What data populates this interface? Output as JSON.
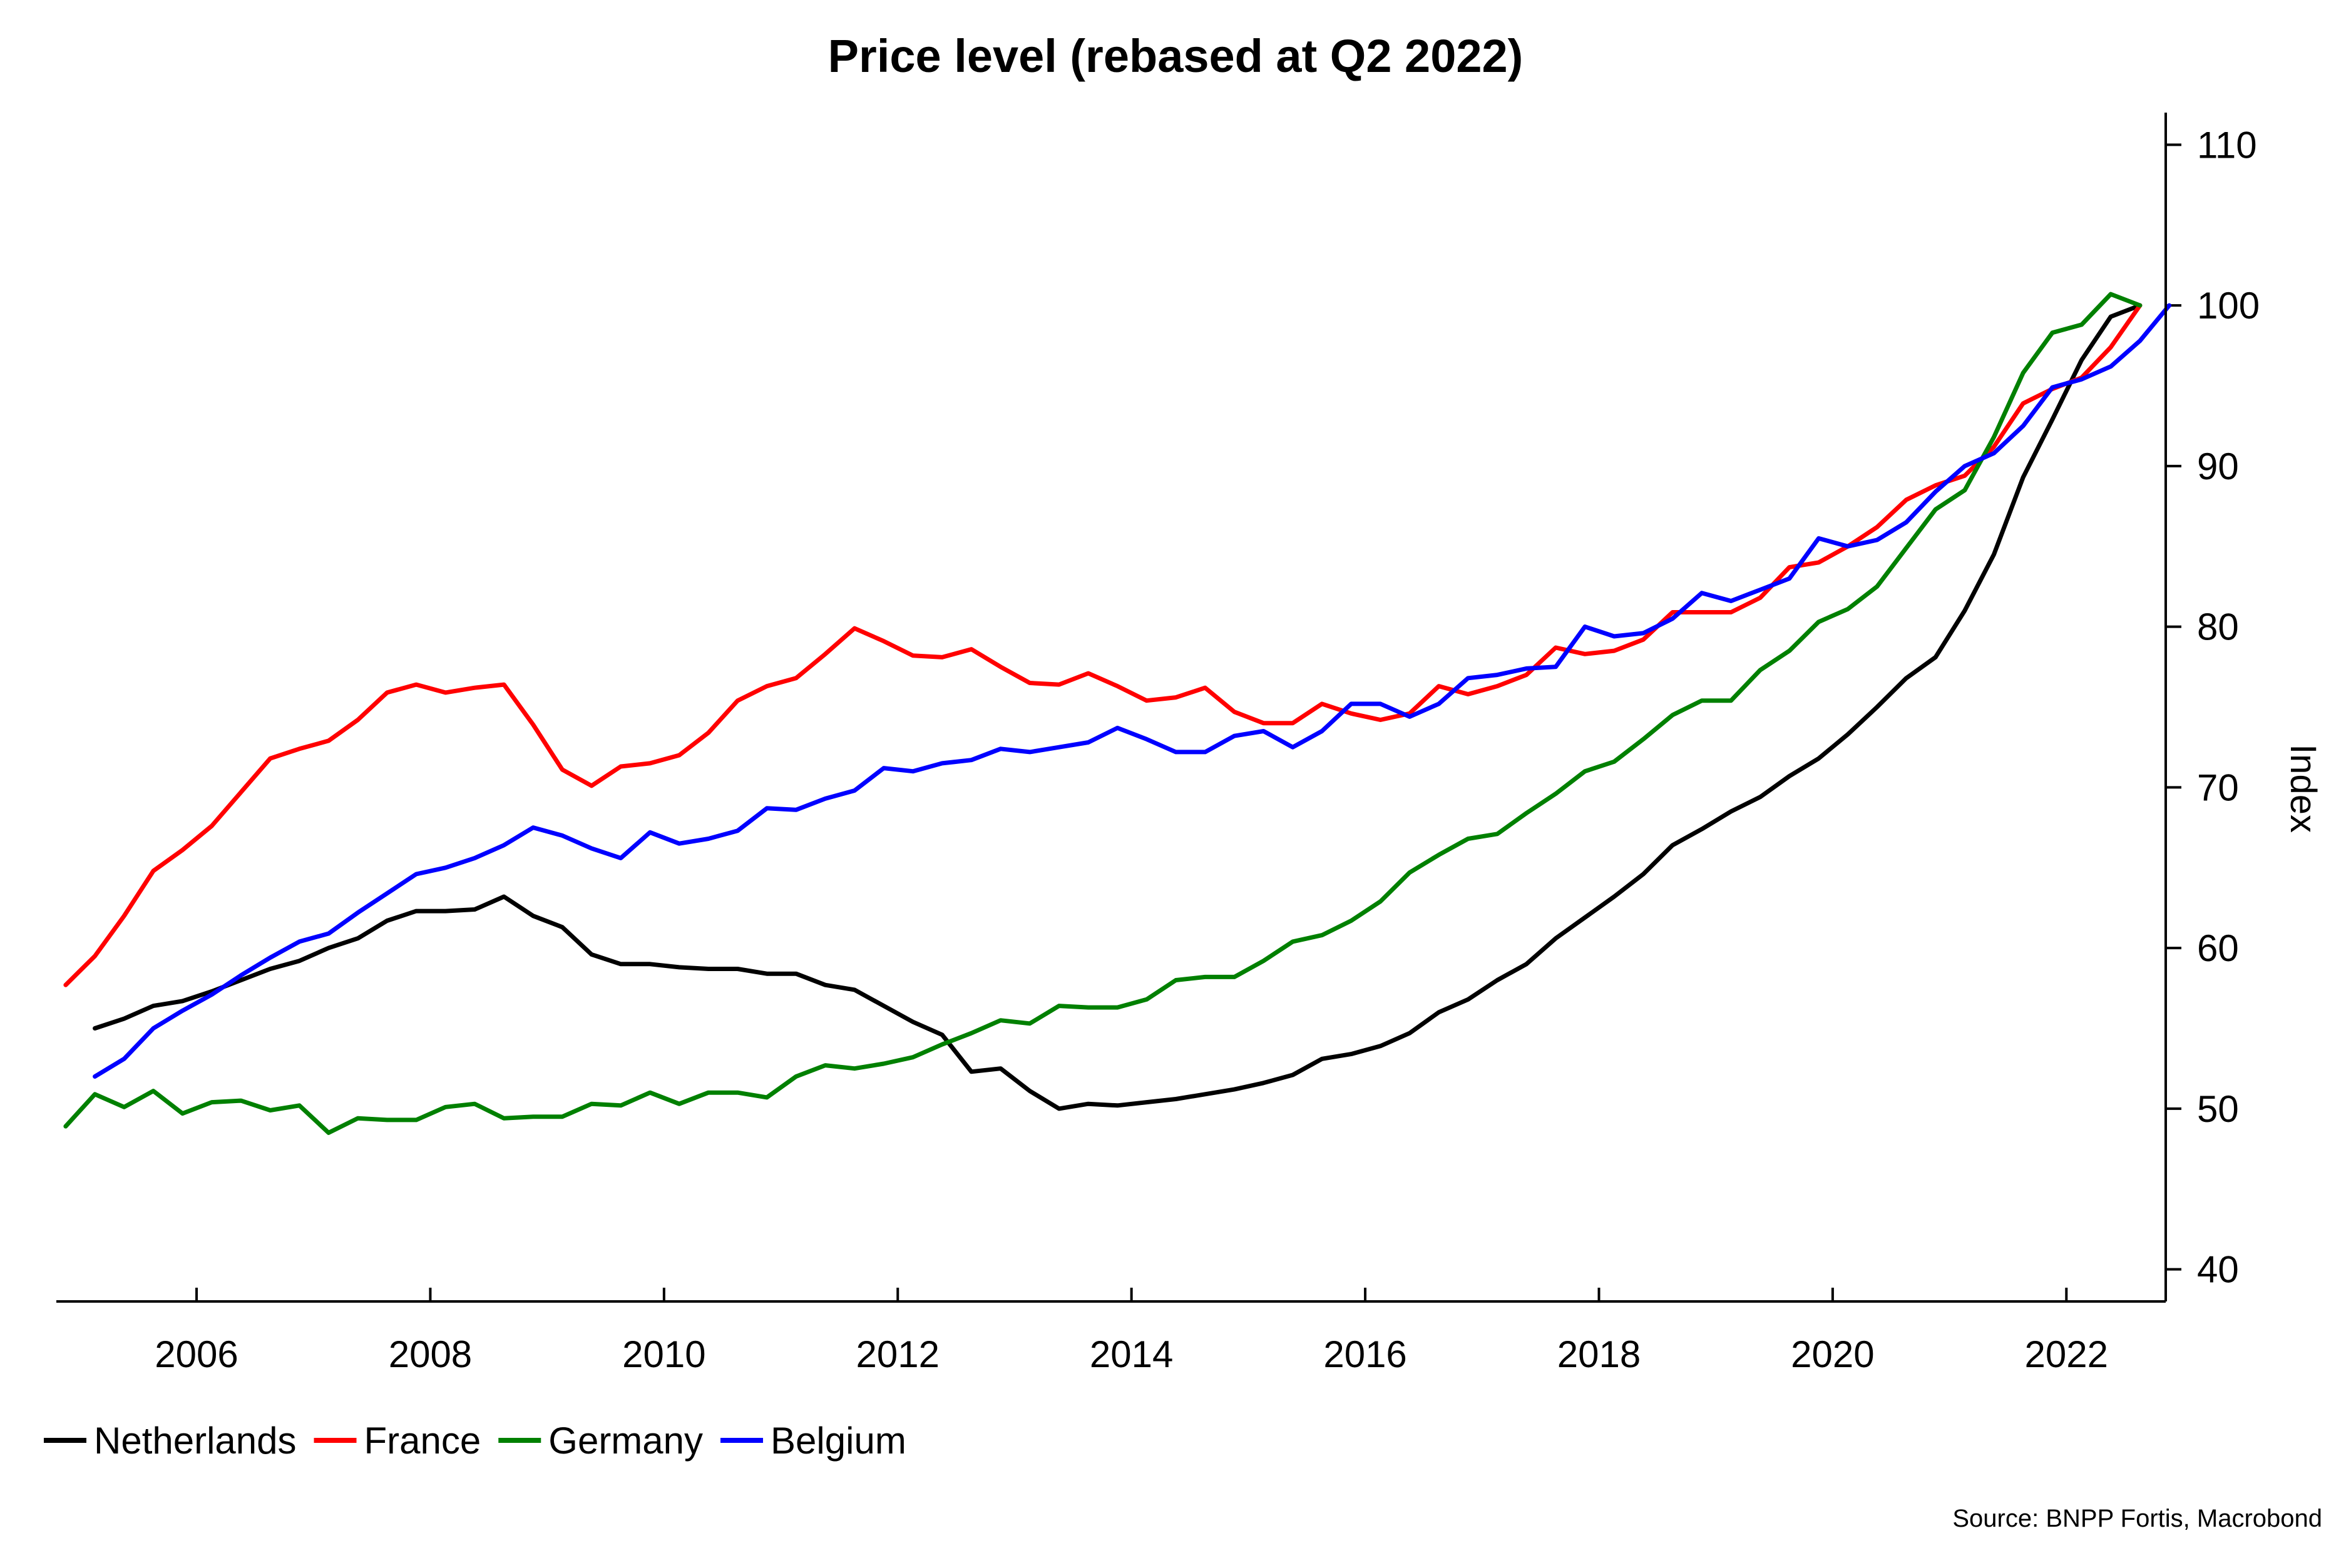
{
  "chart_data": {
    "type": "line",
    "title": "Price level (rebased at Q2 2022)",
    "xlabel": "",
    "ylabel": "Index",
    "source": "Source: BNPP Fortis, Macrobond",
    "ylim": [
      38,
      112
    ],
    "xlim": [
      2004.8,
      2022.85
    ],
    "yticks": [
      40,
      50,
      60,
      70,
      80,
      90,
      100,
      110
    ],
    "ytick_labels": [
      "40",
      "50",
      "60",
      "70",
      "80",
      "90",
      "100",
      "110"
    ],
    "xticks": [
      2006,
      2008,
      2010,
      2012,
      2014,
      2016,
      2018,
      2020,
      2022
    ],
    "xtick_labels": [
      "2006",
      "2008",
      "2010",
      "2012",
      "2014",
      "2016",
      "2018",
      "2020",
      "2022"
    ],
    "legend_position": "bottom-left",
    "series": [
      {
        "name": "Netherlands",
        "color": "#000000",
        "start": 2005.13,
        "step": 0.25,
        "values": [
          55.0,
          55.6,
          56.4,
          56.7,
          57.3,
          58.0,
          58.7,
          59.2,
          60.0,
          60.6,
          61.7,
          62.3,
          62.3,
          62.4,
          63.2,
          62.0,
          61.3,
          59.6,
          59.0,
          59.0,
          58.8,
          58.7,
          58.7,
          58.4,
          58.4,
          57.7,
          57.4,
          56.4,
          55.4,
          54.6,
          52.3,
          52.5,
          51.1,
          50.0,
          50.3,
          50.2,
          50.4,
          50.6,
          50.9,
          51.2,
          51.6,
          52.1,
          53.1,
          53.4,
          53.9,
          54.7,
          56.0,
          56.8,
          58.0,
          59.0,
          60.6,
          61.9,
          63.2,
          64.6,
          66.4,
          67.4,
          68.5,
          69.4,
          70.7,
          71.8,
          73.3,
          75.0,
          76.8,
          78.1,
          81.0,
          84.5,
          89.3,
          92.9,
          96.6,
          99.3,
          100.0
        ]
      },
      {
        "name": "France",
        "color": "#ff0000",
        "start": 2004.88,
        "step": 0.25,
        "values": [
          57.7,
          59.5,
          62.0,
          64.8,
          66.1,
          67.6,
          69.7,
          71.8,
          72.4,
          72.9,
          74.2,
          75.9,
          76.4,
          75.9,
          76.2,
          76.4,
          73.9,
          71.1,
          70.1,
          71.3,
          71.5,
          72.0,
          73.4,
          75.4,
          76.3,
          76.8,
          78.3,
          79.9,
          79.1,
          78.2,
          78.1,
          78.6,
          77.5,
          76.5,
          76.4,
          77.1,
          76.3,
          75.4,
          75.6,
          76.2,
          74.7,
          74.0,
          74.0,
          75.2,
          74.6,
          74.2,
          74.6,
          76.3,
          75.8,
          76.3,
          77.0,
          78.7,
          78.3,
          78.5,
          79.2,
          80.9,
          80.9,
          80.9,
          81.8,
          83.7,
          84.0,
          85.0,
          86.2,
          87.9,
          88.8,
          89.4,
          91.2,
          93.9,
          94.8,
          95.5,
          97.4,
          100.0
        ]
      },
      {
        "name": "Germany",
        "color": "#008000",
        "start": 2004.88,
        "step": 0.25,
        "values": [
          48.9,
          50.9,
          50.1,
          51.1,
          49.7,
          50.4,
          50.5,
          49.9,
          50.2,
          48.5,
          49.4,
          49.3,
          49.3,
          50.1,
          50.3,
          49.4,
          49.5,
          49.5,
          50.3,
          50.2,
          51.0,
          50.3,
          51.0,
          51.0,
          50.7,
          52.0,
          52.7,
          52.5,
          52.8,
          53.2,
          54.0,
          54.7,
          55.5,
          55.3,
          56.4,
          56.3,
          56.3,
          56.8,
          58.0,
          58.2,
          58.2,
          59.2,
          60.4,
          60.8,
          61.7,
          62.9,
          64.7,
          65.8,
          66.8,
          67.1,
          68.4,
          69.6,
          71.0,
          71.6,
          73.0,
          74.5,
          75.4,
          75.4,
          77.3,
          78.5,
          80.3,
          81.1,
          82.5,
          84.9,
          87.3,
          88.5,
          91.8,
          95.8,
          98.3,
          98.8,
          100.7,
          100.0
        ]
      },
      {
        "name": "Belgium",
        "color": "#0000ff",
        "start": 2005.13,
        "step": 0.25,
        "values": [
          52.0,
          53.1,
          55.0,
          56.1,
          57.1,
          58.3,
          59.4,
          60.4,
          60.9,
          62.2,
          63.4,
          64.6,
          65.0,
          65.6,
          66.4,
          67.5,
          67.0,
          66.2,
          65.6,
          67.2,
          66.5,
          66.8,
          67.3,
          68.7,
          68.6,
          69.3,
          69.8,
          71.2,
          71.0,
          71.5,
          71.7,
          72.4,
          72.2,
          72.5,
          72.8,
          73.7,
          73.0,
          72.2,
          72.2,
          73.2,
          73.5,
          72.5,
          73.5,
          75.2,
          75.2,
          74.4,
          75.2,
          76.8,
          77.0,
          77.4,
          77.5,
          80.0,
          79.4,
          79.6,
          80.5,
          82.1,
          81.6,
          82.3,
          83.0,
          85.5,
          85.0,
          85.4,
          86.5,
          88.4,
          90.0,
          90.8,
          92.5,
          94.9,
          95.4,
          96.2,
          97.8,
          100.0
        ]
      }
    ]
  }
}
